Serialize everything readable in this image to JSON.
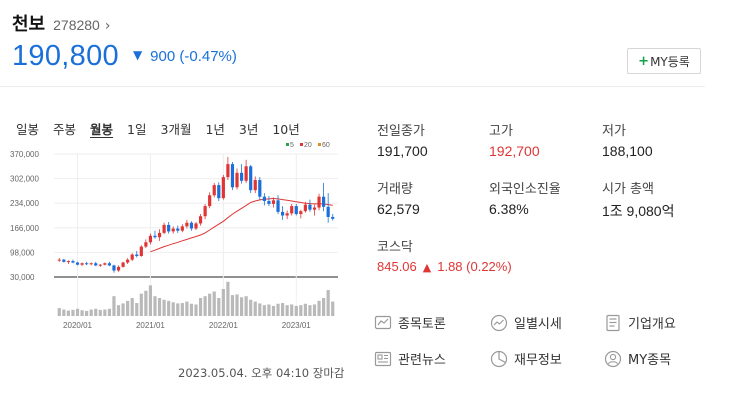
{
  "header": {
    "name": "천보",
    "code": "278280",
    "code_arrow": "›",
    "price": "190,800",
    "change": "900 (-0.47%)",
    "my_button": "MY등록"
  },
  "periods": [
    {
      "label": "일봉",
      "active": false
    },
    {
      "label": "주봉",
      "active": false
    },
    {
      "label": "월봉",
      "active": true
    },
    {
      "label": "1일",
      "active": false
    },
    {
      "label": "3개월",
      "active": false
    },
    {
      "label": "1년",
      "active": false
    },
    {
      "label": "3년",
      "active": false
    },
    {
      "label": "10년",
      "active": false
    }
  ],
  "chart_data": {
    "type": "candlestick",
    "y_ticks": [
      "370,000",
      "302,000",
      "234,000",
      "166,000",
      "98,000",
      "30,000"
    ],
    "x_ticks": [
      "2020/01",
      "2021/01",
      "2022/01",
      "2023/01"
    ],
    "ylim": [
      30000,
      370000
    ],
    "legend": [
      {
        "label": "5",
        "color": "#2aa24a"
      },
      {
        "label": "20",
        "color": "#e03535"
      },
      {
        "label": "60",
        "color": "#e08a2a"
      }
    ],
    "up_color": "#e03535",
    "down_color": "#1a70d8",
    "candles": [
      [
        76000,
        82000,
        72000,
        78000
      ],
      [
        78000,
        80000,
        70000,
        72000
      ],
      [
        72000,
        76000,
        66000,
        74000
      ],
      [
        74000,
        78000,
        68000,
        70000
      ],
      [
        70000,
        72000,
        62000,
        64000
      ],
      [
        64000,
        70000,
        60000,
        68000
      ],
      [
        68000,
        72000,
        63000,
        66000
      ],
      [
        66000,
        70000,
        62000,
        68000
      ],
      [
        68000,
        72000,
        60000,
        62000
      ],
      [
        62000,
        66000,
        58000,
        64000
      ],
      [
        64000,
        70000,
        62000,
        68000
      ],
      [
        68000,
        72000,
        60000,
        62000
      ],
      [
        62000,
        64000,
        42000,
        48000
      ],
      [
        48000,
        62000,
        44000,
        58000
      ],
      [
        58000,
        72000,
        56000,
        70000
      ],
      [
        70000,
        82000,
        66000,
        78000
      ],
      [
        78000,
        96000,
        74000,
        92000
      ],
      [
        92000,
        102000,
        84000,
        88000
      ],
      [
        88000,
        118000,
        86000,
        114000
      ],
      [
        114000,
        134000,
        110000,
        126000
      ],
      [
        126000,
        150000,
        120000,
        144000
      ],
      [
        144000,
        158000,
        136000,
        140000
      ],
      [
        140000,
        162000,
        130000,
        152000
      ],
      [
        152000,
        180000,
        148000,
        174000
      ],
      [
        174000,
        182000,
        150000,
        156000
      ],
      [
        156000,
        170000,
        150000,
        164000
      ],
      [
        164000,
        172000,
        152000,
        158000
      ],
      [
        158000,
        176000,
        154000,
        170000
      ],
      [
        170000,
        188000,
        164000,
        180000
      ],
      [
        180000,
        184000,
        158000,
        164000
      ],
      [
        164000,
        182000,
        160000,
        178000
      ],
      [
        178000,
        204000,
        172000,
        198000
      ],
      [
        198000,
        232000,
        190000,
        226000
      ],
      [
        226000,
        264000,
        220000,
        256000
      ],
      [
        256000,
        290000,
        250000,
        284000
      ],
      [
        284000,
        292000,
        240000,
        248000
      ],
      [
        248000,
        312000,
        244000,
        306000
      ],
      [
        306000,
        362000,
        298000,
        342000
      ],
      [
        342000,
        348000,
        270000,
        278000
      ],
      [
        278000,
        330000,
        272000,
        318000
      ],
      [
        318000,
        342000,
        288000,
        296000
      ],
      [
        296000,
        354000,
        290000,
        336000
      ],
      [
        336000,
        340000,
        262000,
        270000
      ],
      [
        270000,
        308000,
        262000,
        298000
      ],
      [
        298000,
        306000,
        244000,
        252000
      ],
      [
        252000,
        262000,
        228000,
        240000
      ],
      [
        240000,
        254000,
        226000,
        232000
      ],
      [
        232000,
        250000,
        222000,
        242000
      ],
      [
        242000,
        256000,
        204000,
        210000
      ],
      [
        210000,
        226000,
        188000,
        200000
      ],
      [
        200000,
        214000,
        190000,
        206000
      ],
      [
        206000,
        232000,
        200000,
        226000
      ],
      [
        226000,
        232000,
        200000,
        204000
      ],
      [
        204000,
        216000,
        192000,
        212000
      ],
      [
        212000,
        238000,
        208000,
        230000
      ],
      [
        230000,
        244000,
        210000,
        216000
      ],
      [
        216000,
        230000,
        200000,
        222000
      ],
      [
        222000,
        260000,
        214000,
        252000
      ],
      [
        252000,
        290000,
        212000,
        224000
      ],
      [
        224000,
        262000,
        180000,
        196000
      ],
      [
        196000,
        204000,
        186000,
        190800
      ]
    ],
    "ma20": [
      null,
      null,
      null,
      null,
      null,
      null,
      null,
      null,
      null,
      null,
      null,
      null,
      null,
      null,
      null,
      null,
      null,
      null,
      null,
      null,
      100000,
      104000,
      109000,
      114000,
      118000,
      122000,
      126000,
      130000,
      134000,
      138000,
      142000,
      146000,
      152000,
      160000,
      168000,
      176000,
      184000,
      194000,
      204000,
      212000,
      220000,
      228000,
      236000,
      240000,
      243000,
      245000,
      246000,
      247000,
      246000,
      244000,
      242000,
      240000,
      238000,
      236000,
      234000,
      233000,
      232000,
      232000,
      232000,
      230000,
      228000
    ],
    "volume": [
      0.22,
      0.18,
      0.15,
      0.17,
      0.2,
      0.16,
      0.14,
      0.18,
      0.2,
      0.17,
      0.18,
      0.2,
      0.55,
      0.3,
      0.35,
      0.42,
      0.5,
      0.36,
      0.62,
      0.7,
      0.85,
      0.55,
      0.5,
      0.45,
      0.42,
      0.38,
      0.35,
      0.36,
      0.4,
      0.34,
      0.32,
      0.5,
      0.55,
      0.62,
      0.68,
      0.5,
      0.75,
      0.95,
      0.58,
      0.6,
      0.52,
      0.55,
      0.45,
      0.4,
      0.35,
      0.3,
      0.32,
      0.28,
      0.34,
      0.36,
      0.3,
      0.32,
      0.28,
      0.3,
      0.34,
      0.3,
      0.32,
      0.42,
      0.5,
      0.72,
      0.4
    ]
  },
  "stats": {
    "prev_close_label": "전일종가",
    "prev_close": "191,700",
    "high_label": "고가",
    "high": "192,700",
    "low_label": "저가",
    "low": "188,100",
    "volume_label": "거래량",
    "volume": "62,579",
    "foreign_label": "외국인소진율",
    "foreign": "6.38%",
    "mcap_label": "시가 총액",
    "mcap": "1조 9,080억",
    "index_label": "코스닥",
    "index_value": "845.06",
    "index_change": "1.88 (0.22%)"
  },
  "links": {
    "discussion": "종목토론",
    "daily": "일별시세",
    "company": "기업개요",
    "news": "관련뉴스",
    "finance": "재무정보",
    "my": "MY종목"
  },
  "timestamp": "2023.05.04. 오후 04:10 장마감",
  "icons": {
    "code_arrow": "chevron-right-icon",
    "down": "down-triangle-icon",
    "up": "up-triangle-icon",
    "discussion": "chart-bubble-icon",
    "daily": "trend-circle-icon",
    "company": "document-icon",
    "news": "newspaper-icon",
    "finance": "pie-chart-icon",
    "my": "person-icon"
  }
}
